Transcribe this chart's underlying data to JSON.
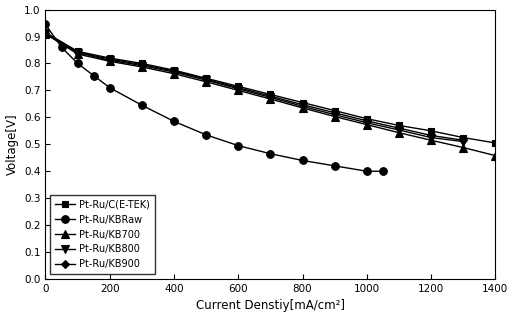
{
  "title": "",
  "xlabel": "Current Denstiy[mA/cm²]",
  "ylabel": "Voltage[V]",
  "xlim": [
    0,
    1400
  ],
  "ylim": [
    0.0,
    1.0
  ],
  "xticks": [
    0,
    200,
    400,
    600,
    800,
    1000,
    1200,
    1400
  ],
  "yticks": [
    0.0,
    0.1,
    0.2,
    0.3,
    0.4,
    0.5,
    0.6,
    0.7,
    0.8,
    0.9,
    1.0
  ],
  "series": [
    {
      "label": "Pt-Ru/C(E-TEK)",
      "color": "#000000",
      "marker": "s",
      "markersize": 4.5,
      "linewidth": 1.0,
      "x": [
        0,
        100,
        200,
        300,
        400,
        500,
        600,
        700,
        800,
        900,
        1000,
        1100,
        1200,
        1300,
        1400
      ],
      "y": [
        0.915,
        0.845,
        0.82,
        0.8,
        0.775,
        0.745,
        0.715,
        0.685,
        0.655,
        0.625,
        0.595,
        0.57,
        0.55,
        0.525,
        0.505
      ]
    },
    {
      "label": "Pt-Ru/KBRaw",
      "color": "#000000",
      "marker": "o",
      "markersize": 5.5,
      "linewidth": 1.0,
      "x": [
        0,
        50,
        100,
        150,
        200,
        300,
        400,
        500,
        600,
        700,
        800,
        900,
        1000,
        1050
      ],
      "y": [
        0.945,
        0.86,
        0.8,
        0.755,
        0.71,
        0.645,
        0.585,
        0.535,
        0.495,
        0.465,
        0.44,
        0.42,
        0.4,
        0.4
      ]
    },
    {
      "label": "Pt-Ru/KB700",
      "color": "#000000",
      "marker": "^",
      "markersize": 5.5,
      "linewidth": 1.0,
      "x": [
        0,
        100,
        200,
        300,
        400,
        500,
        600,
        700,
        800,
        900,
        1000,
        1100,
        1200,
        1300,
        1400
      ],
      "y": [
        0.91,
        0.835,
        0.808,
        0.787,
        0.762,
        0.732,
        0.7,
        0.668,
        0.635,
        0.603,
        0.573,
        0.543,
        0.515,
        0.488,
        0.458
      ]
    },
    {
      "label": "Pt-Ru/KB800",
      "color": "#000000",
      "marker": "v",
      "markersize": 5.5,
      "linewidth": 1.0,
      "x": [
        0,
        100,
        200,
        300,
        400,
        500,
        600,
        700,
        800,
        900,
        1000,
        1100,
        1200,
        1300
      ],
      "y": [
        0.91,
        0.84,
        0.812,
        0.792,
        0.768,
        0.738,
        0.706,
        0.674,
        0.641,
        0.61,
        0.58,
        0.553,
        0.525,
        0.51
      ]
    },
    {
      "label": "Pt-Ru/KB900",
      "color": "#000000",
      "marker": "D",
      "markersize": 4.5,
      "linewidth": 1.0,
      "x": [
        0,
        100,
        200,
        300,
        400,
        500,
        600,
        700,
        800,
        900,
        1000,
        1100,
        1200,
        1300
      ],
      "y": [
        0.912,
        0.842,
        0.816,
        0.796,
        0.772,
        0.742,
        0.71,
        0.679,
        0.647,
        0.617,
        0.587,
        0.56,
        0.533,
        0.515
      ]
    }
  ],
  "legend_loc": "lower left",
  "legend_fontsize": 7.0,
  "background_color": "#ffffff",
  "tick_fontsize": 7.5,
  "label_fontsize": 8.5
}
